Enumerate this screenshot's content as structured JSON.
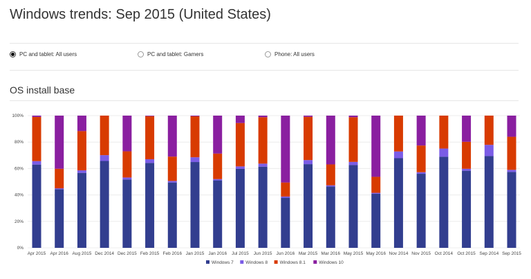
{
  "title": "Windows trends: Sep 2015 (United States)",
  "options": [
    {
      "label": "PC and tablet: All users",
      "selected": true
    },
    {
      "label": "PC and tablet: Gamers",
      "selected": false
    },
    {
      "label": "Phone: All users",
      "selected": false
    }
  ],
  "section_title": "OS install base",
  "chart_data": {
    "type": "bar",
    "stacked": true,
    "title": "",
    "xlabel": "",
    "ylabel": "",
    "ylim": [
      0,
      100
    ],
    "yticks": [
      "0%",
      "20%",
      "40%",
      "60%",
      "80%",
      "100%"
    ],
    "grid": true,
    "legend": "bottom",
    "categories": [
      "Apr 2015",
      "Apr 2016",
      "Aug 2015",
      "Dec 2014",
      "Dec 2015",
      "Feb 2015",
      "Feb 2016",
      "Jan 2015",
      "Jan 2016",
      "Jul 2015",
      "Jun 2015",
      "Jun 2016",
      "Mar 2015",
      "Mar 2016",
      "May 2015",
      "May 2016",
      "Nov 2014",
      "Nov 2015",
      "Oct 2014",
      "Oct 2015",
      "Sep 2014",
      "Sep 2015"
    ],
    "series": [
      {
        "name": "Windows 7",
        "color": "#323e8f",
        "values": [
          63,
          44.3,
          56.7,
          65.7,
          51.7,
          64.2,
          49.4,
          64.9,
          51,
          59.7,
          61.4,
          37.9,
          63.3,
          46.4,
          62.6,
          40.9,
          67.8,
          56,
          68.9,
          58.3,
          69.4,
          57.4
        ]
      },
      {
        "name": "Windows 8",
        "color": "#7b5ce6",
        "values": [
          2.6,
          0.7,
          1.9,
          4.4,
          1.5,
          2.8,
          1.2,
          3.6,
          1,
          1.9,
          2.3,
          0.9,
          3.1,
          0.9,
          2.4,
          0.7,
          5.1,
          1.2,
          6.2,
          1.5,
          8.5,
          1.6
        ]
      },
      {
        "name": "Windows 8.1",
        "color": "#d83b01",
        "values": [
          33.4,
          14.8,
          29.7,
          29.9,
          19.8,
          32.6,
          18.4,
          31,
          19.3,
          32.8,
          35.1,
          10.6,
          32.7,
          15.8,
          33.8,
          12.1,
          27.1,
          20.2,
          24.9,
          20.4,
          22.1,
          25
        ]
      },
      {
        "name": "Windows 10",
        "color": "#8a1fa0",
        "values": [
          1,
          40.2,
          11.7,
          0,
          27,
          0.4,
          31,
          0.5,
          28.7,
          5.6,
          1.2,
          50.6,
          0.9,
          36.9,
          1.2,
          46.3,
          0,
          22.6,
          0,
          19.8,
          0,
          16
        ]
      }
    ]
  }
}
